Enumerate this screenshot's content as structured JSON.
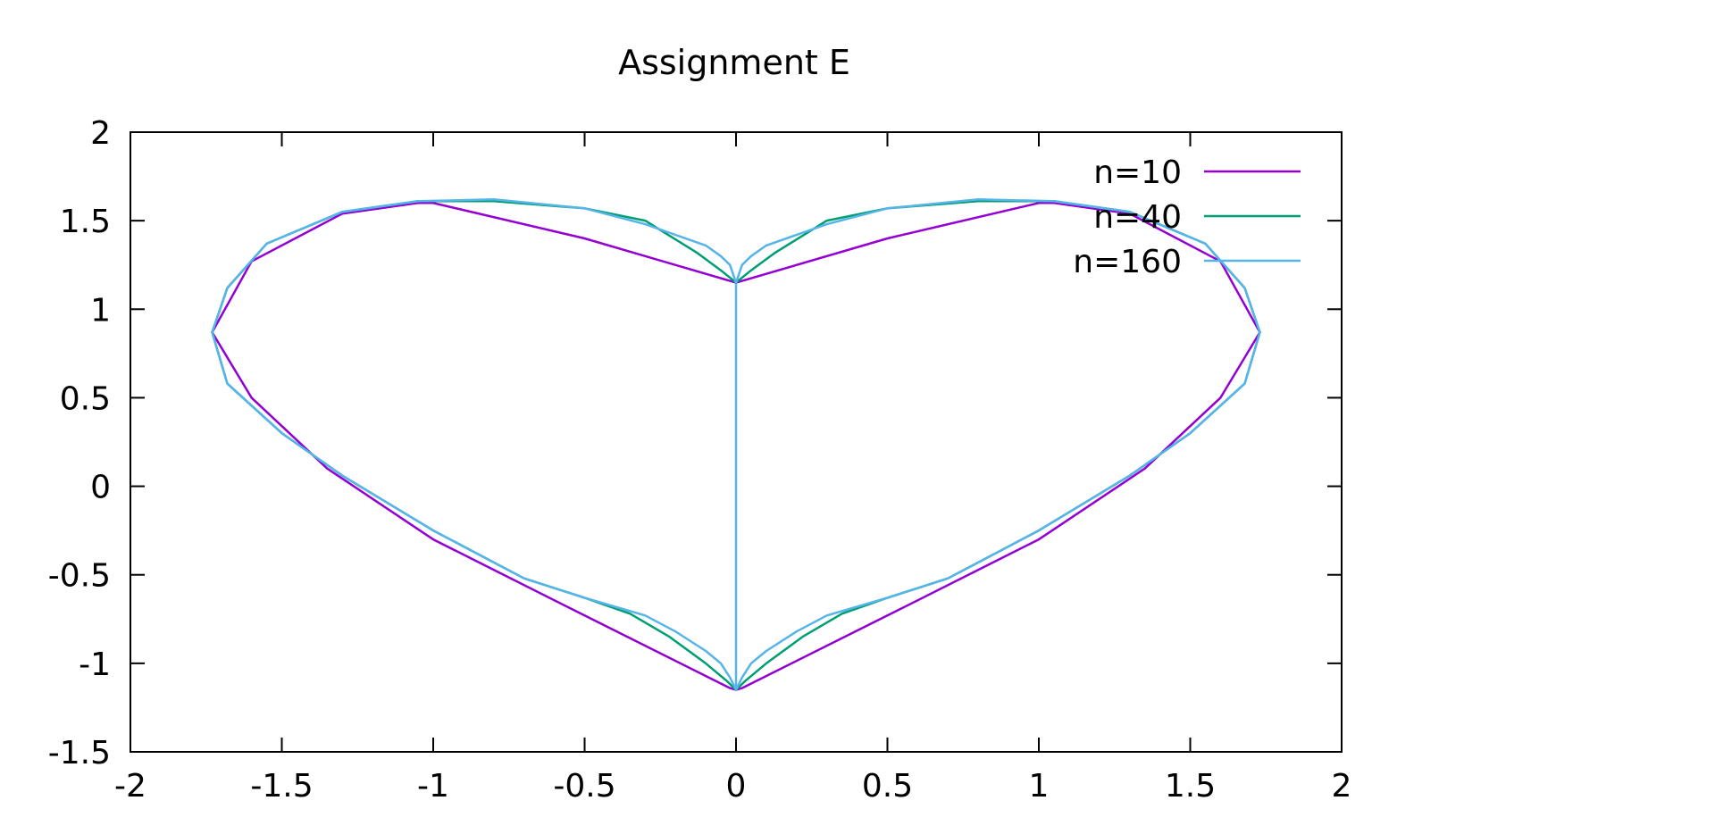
{
  "chart_data": {
    "type": "line",
    "title": "Assignment E",
    "xlabel": "",
    "ylabel": "",
    "xlim": [
      -2,
      2
    ],
    "ylim": [
      -1.5,
      2
    ],
    "xticks": [
      -2,
      -1.5,
      -1,
      -0.5,
      0,
      0.5,
      1,
      1.5,
      2
    ],
    "yticks": [
      -1.5,
      -1,
      -0.5,
      0,
      0.5,
      1,
      1.5,
      2
    ],
    "xtick_labels": [
      "-2",
      "-1.5",
      "-1",
      "-0.5",
      "0",
      "0.5",
      "1",
      "1.5",
      "2"
    ],
    "ytick_labels": [
      "-1.5",
      "-1",
      "-0.5",
      "0",
      "0.5",
      "1",
      "1.5",
      "2"
    ],
    "grid": false,
    "legend_position": "top-right",
    "series": [
      {
        "name": "n=10",
        "color": "#9400d3",
        "x": [
          0,
          0.02,
          0.5,
          1,
          1.05,
          1.3,
          1.6,
          1.73,
          1.6,
          1.35,
          1,
          0.5,
          0.02,
          0,
          -0.02,
          -0.5,
          -1,
          -1.35,
          -1.6,
          -1.73,
          -1.6,
          -1.3,
          -1.05,
          -1,
          -0.5,
          -0.02,
          0
        ],
        "y": [
          1.15,
          1.16,
          1.4,
          1.6,
          1.6,
          1.54,
          1.27,
          0.87,
          0.5,
          0.1,
          -0.3,
          -0.73,
          -1.14,
          -1.15,
          -1.14,
          -0.73,
          -0.3,
          0.1,
          0.5,
          0.87,
          1.27,
          1.54,
          1.6,
          1.6,
          1.4,
          1.16,
          1.15
        ]
      },
      {
        "name": "n=40",
        "color": "#009e73",
        "x": [
          0,
          0.05,
          0.13,
          0.3,
          0.5,
          0.8,
          1.05,
          1.3,
          1.55,
          1.68,
          1.73,
          1.68,
          1.5,
          1.3,
          1,
          0.7,
          0.5,
          0.35,
          0.22,
          0.1,
          0.03,
          0,
          -0.03,
          -0.1,
          -0.22,
          -0.35,
          -0.5,
          -0.7,
          -1,
          -1.3,
          -1.5,
          -1.68,
          -1.73,
          -1.68,
          -1.55,
          -1.3,
          -1.05,
          -0.8,
          -0.5,
          -0.3,
          -0.13,
          -0.05,
          0
        ],
        "y": [
          1.15,
          1.22,
          1.32,
          1.5,
          1.57,
          1.61,
          1.61,
          1.55,
          1.37,
          1.12,
          0.87,
          0.58,
          0.3,
          0.06,
          -0.25,
          -0.52,
          -0.63,
          -0.72,
          -0.85,
          -1.0,
          -1.1,
          -1.15,
          -1.1,
          -1.0,
          -0.85,
          -0.72,
          -0.63,
          -0.52,
          -0.25,
          0.06,
          0.3,
          0.58,
          0.87,
          1.12,
          1.37,
          1.55,
          1.61,
          1.61,
          1.57,
          1.5,
          1.32,
          1.22,
          1.15
        ]
      },
      {
        "name": "n=160",
        "color": "#56b4e9",
        "x": [
          0,
          0.02,
          0.05,
          0.1,
          0.2,
          0.3,
          0.5,
          0.8,
          1.05,
          1.3,
          1.55,
          1.68,
          1.73,
          1.68,
          1.5,
          1.3,
          1,
          0.7,
          0.5,
          0.3,
          0.2,
          0.1,
          0.05,
          0.02,
          0,
          -0.02,
          -0.05,
          -0.1,
          -0.2,
          -0.3,
          -0.5,
          -0.7,
          -1,
          -1.3,
          -1.5,
          -1.68,
          -1.73,
          -1.68,
          -1.55,
          -1.3,
          -1.05,
          -0.8,
          -0.5,
          -0.3,
          -0.2,
          -0.1,
          -0.05,
          -0.02,
          0
        ],
        "y": [
          1.15,
          1.25,
          1.3,
          1.36,
          1.42,
          1.48,
          1.57,
          1.62,
          1.61,
          1.55,
          1.37,
          1.12,
          0.87,
          0.58,
          0.3,
          0.06,
          -0.25,
          -0.52,
          -0.63,
          -0.73,
          -0.82,
          -0.93,
          -1.0,
          -1.08,
          -1.15,
          -1.08,
          -1.0,
          -0.93,
          -0.82,
          -0.73,
          -0.63,
          -0.52,
          -0.25,
          0.06,
          0.3,
          0.58,
          0.87,
          1.12,
          1.37,
          1.55,
          1.61,
          1.62,
          1.57,
          1.48,
          1.42,
          1.36,
          1.3,
          1.25,
          1.15
        ]
      },
      {
        "name": "",
        "color": "#56b4e9",
        "x": [
          0,
          0
        ],
        "y": [
          1.15,
          -1.15
        ]
      }
    ]
  }
}
